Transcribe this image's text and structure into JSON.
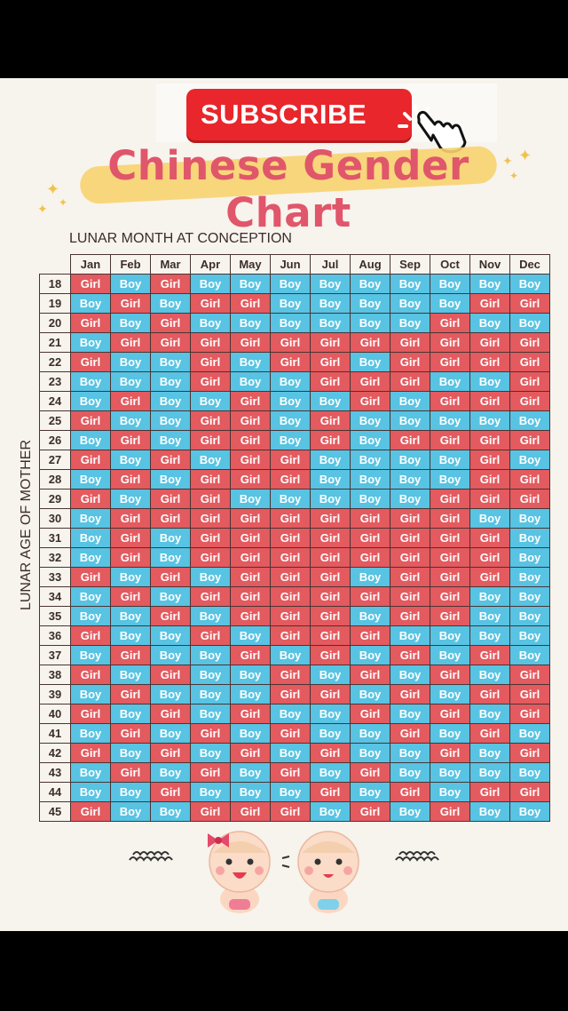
{
  "subscribe": {
    "label": "SUBSCRIBE"
  },
  "title": "Chinese Gender Chart",
  "colors": {
    "boy": "#58c3e2",
    "girl": "#e35a5f",
    "title": "#e0566a",
    "subscribe": "#e8262b"
  },
  "chart_data": {
    "type": "table",
    "title": "Chinese Gender Chart",
    "xlabel": "LUNAR MONTH AT CONCEPTION",
    "ylabel": "LUNAR AGE OF MOTHER",
    "columns": [
      "Jan",
      "Feb",
      "Mar",
      "Apr",
      "May",
      "Jun",
      "Jul",
      "Aug",
      "Sep",
      "Oct",
      "Nov",
      "Dec"
    ],
    "rows": [
      {
        "age": "18",
        "values": [
          "Girl",
          "Boy",
          "Girl",
          "Boy",
          "Boy",
          "Boy",
          "Boy",
          "Boy",
          "Boy",
          "Boy",
          "Boy",
          "Boy"
        ]
      },
      {
        "age": "19",
        "values": [
          "Boy",
          "Girl",
          "Boy",
          "Girl",
          "Girl",
          "Boy",
          "Boy",
          "Boy",
          "Boy",
          "Boy",
          "Girl",
          "Girl"
        ]
      },
      {
        "age": "20",
        "values": [
          "Girl",
          "Boy",
          "Girl",
          "Boy",
          "Boy",
          "Boy",
          "Boy",
          "Boy",
          "Boy",
          "Girl",
          "Boy",
          "Boy"
        ]
      },
      {
        "age": "21",
        "values": [
          "Boy",
          "Girl",
          "Girl",
          "Girl",
          "Girl",
          "Girl",
          "Girl",
          "Girl",
          "Girl",
          "Girl",
          "Girl",
          "Girl"
        ]
      },
      {
        "age": "22",
        "values": [
          "Girl",
          "Boy",
          "Boy",
          "Girl",
          "Boy",
          "Girl",
          "Girl",
          "Boy",
          "Girl",
          "Girl",
          "Girl",
          "Girl"
        ]
      },
      {
        "age": "23",
        "values": [
          "Boy",
          "Boy",
          "Boy",
          "Girl",
          "Boy",
          "Boy",
          "Girl",
          "Girl",
          "Girl",
          "Boy",
          "Boy",
          "Girl"
        ]
      },
      {
        "age": "24",
        "values": [
          "Boy",
          "Girl",
          "Boy",
          "Boy",
          "Girl",
          "Boy",
          "Boy",
          "Girl",
          "Boy",
          "Girl",
          "Girl",
          "Girl"
        ]
      },
      {
        "age": "25",
        "values": [
          "Girl",
          "Boy",
          "Boy",
          "Girl",
          "Girl",
          "Boy",
          "Girl",
          "Boy",
          "Boy",
          "Boy",
          "Boy",
          "Boy"
        ]
      },
      {
        "age": "26",
        "values": [
          "Boy",
          "Girl",
          "Boy",
          "Girl",
          "Girl",
          "Boy",
          "Girl",
          "Boy",
          "Girl",
          "Girl",
          "Girl",
          "Girl"
        ]
      },
      {
        "age": "27",
        "values": [
          "Girl",
          "Boy",
          "Girl",
          "Boy",
          "Girl",
          "Girl",
          "Boy",
          "Boy",
          "Boy",
          "Boy",
          "Girl",
          "Boy"
        ]
      },
      {
        "age": "28",
        "values": [
          "Boy",
          "Girl",
          "Boy",
          "Girl",
          "Girl",
          "Girl",
          "Boy",
          "Boy",
          "Boy",
          "Boy",
          "Girl",
          "Girl"
        ]
      },
      {
        "age": "29",
        "values": [
          "Girl",
          "Boy",
          "Girl",
          "Girl",
          "Boy",
          "Boy",
          "Boy",
          "Boy",
          "Boy",
          "Girl",
          "Girl",
          "Girl"
        ]
      },
      {
        "age": "30",
        "values": [
          "Boy",
          "Girl",
          "Girl",
          "Girl",
          "Girl",
          "Girl",
          "Girl",
          "Girl",
          "Girl",
          "Girl",
          "Boy",
          "Boy"
        ]
      },
      {
        "age": "31",
        "values": [
          "Boy",
          "Girl",
          "Boy",
          "Girl",
          "Girl",
          "Girl",
          "Girl",
          "Girl",
          "Girl",
          "Girl",
          "Girl",
          "Boy"
        ]
      },
      {
        "age": "32",
        "values": [
          "Boy",
          "Girl",
          "Boy",
          "Girl",
          "Girl",
          "Girl",
          "Girl",
          "Girl",
          "Girl",
          "Girl",
          "Girl",
          "Boy"
        ]
      },
      {
        "age": "33",
        "values": [
          "Girl",
          "Boy",
          "Girl",
          "Boy",
          "Girl",
          "Girl",
          "Girl",
          "Boy",
          "Girl",
          "Girl",
          "Girl",
          "Boy"
        ]
      },
      {
        "age": "34",
        "values": [
          "Boy",
          "Girl",
          "Boy",
          "Girl",
          "Girl",
          "Girl",
          "Girl",
          "Girl",
          "Girl",
          "Girl",
          "Boy",
          "Boy"
        ]
      },
      {
        "age": "35",
        "values": [
          "Boy",
          "Boy",
          "Girl",
          "Boy",
          "Girl",
          "Girl",
          "Girl",
          "Boy",
          "Girl",
          "Girl",
          "Boy",
          "Boy"
        ]
      },
      {
        "age": "36",
        "values": [
          "Girl",
          "Boy",
          "Boy",
          "Girl",
          "Boy",
          "Girl",
          "Girl",
          "Girl",
          "Boy",
          "Boy",
          "Boy",
          "Boy"
        ]
      },
      {
        "age": "37",
        "values": [
          "Boy",
          "Girl",
          "Boy",
          "Boy",
          "Girl",
          "Boy",
          "Girl",
          "Boy",
          "Girl",
          "Boy",
          "Girl",
          "Boy"
        ]
      },
      {
        "age": "38",
        "values": [
          "Girl",
          "Boy",
          "Girl",
          "Boy",
          "Boy",
          "Girl",
          "Boy",
          "Girl",
          "Boy",
          "Girl",
          "Boy",
          "Girl"
        ]
      },
      {
        "age": "39",
        "values": [
          "Boy",
          "Girl",
          "Boy",
          "Boy",
          "Boy",
          "Girl",
          "Girl",
          "Boy",
          "Girl",
          "Boy",
          "Girl",
          "Girl"
        ]
      },
      {
        "age": "40",
        "values": [
          "Girl",
          "Boy",
          "Girl",
          "Boy",
          "Girl",
          "Boy",
          "Boy",
          "Girl",
          "Boy",
          "Girl",
          "Boy",
          "Girl"
        ]
      },
      {
        "age": "41",
        "values": [
          "Boy",
          "Girl",
          "Boy",
          "Girl",
          "Boy",
          "Girl",
          "Boy",
          "Boy",
          "Girl",
          "Boy",
          "Girl",
          "Boy"
        ]
      },
      {
        "age": "42",
        "values": [
          "Girl",
          "Boy",
          "Girl",
          "Boy",
          "Girl",
          "Boy",
          "Girl",
          "Boy",
          "Boy",
          "Girl",
          "Boy",
          "Girl"
        ]
      },
      {
        "age": "43",
        "values": [
          "Boy",
          "Girl",
          "Boy",
          "Girl",
          "Boy",
          "Girl",
          "Boy",
          "Girl",
          "Boy",
          "Boy",
          "Boy",
          "Boy"
        ]
      },
      {
        "age": "44",
        "values": [
          "Boy",
          "Boy",
          "Girl",
          "Boy",
          "Boy",
          "Boy",
          "Girl",
          "Boy",
          "Girl",
          "Boy",
          "Girl",
          "Girl"
        ]
      },
      {
        "age": "45",
        "values": [
          "Girl",
          "Boy",
          "Boy",
          "Girl",
          "Girl",
          "Girl",
          "Boy",
          "Girl",
          "Boy",
          "Girl",
          "Boy",
          "Boy"
        ]
      }
    ]
  }
}
